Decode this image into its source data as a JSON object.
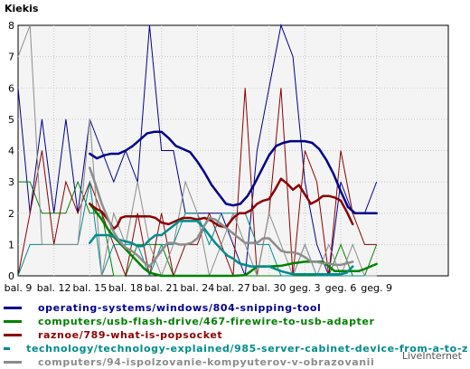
{
  "title": "Kiekis",
  "credit": "LiveInternet",
  "chart_data": {
    "type": "line",
    "title": "Kiekis",
    "xlabel": "",
    "ylabel": "",
    "ylim": [
      0,
      8
    ],
    "yticks": [
      0,
      1,
      2,
      3,
      4,
      5,
      6,
      7,
      8
    ],
    "xlim": [
      0,
      36
    ],
    "xticks": [
      {
        "x": 0,
        "label": "bal. 9"
      },
      {
        "x": 3,
        "label": "bal. 12"
      },
      {
        "x": 6,
        "label": "bal. 15"
      },
      {
        "x": 9,
        "label": "bal. 18"
      },
      {
        "x": 12,
        "label": "bal. 21"
      },
      {
        "x": 15,
        "label": "bal. 24"
      },
      {
        "x": 18,
        "label": "bal. 27"
      },
      {
        "x": 21,
        "label": "bal. 30"
      },
      {
        "x": 24,
        "label": "geg. 3"
      },
      {
        "x": 27,
        "label": "geg. 6"
      },
      {
        "x": 30,
        "label": "geg. 9"
      }
    ],
    "grid": true,
    "legend_position": "bottom",
    "series": [
      {
        "name": "operating-systems/windows/804-snipping-tool",
        "color": "#00008b",
        "raw": [
          6,
          2,
          5,
          2,
          5,
          2,
          5,
          4,
          3,
          4,
          3,
          8,
          4,
          4,
          2,
          2,
          2,
          2,
          1,
          0,
          4,
          6,
          8,
          7,
          3,
          1,
          0,
          3,
          2,
          2,
          3
        ],
        "smooth": [
          [
            6,
            3.9
          ],
          [
            6.6,
            3.75
          ],
          [
            7.2,
            3.85
          ],
          [
            7.8,
            3.9
          ],
          [
            8.4,
            3.9
          ],
          [
            9,
            4.0
          ],
          [
            9.6,
            4.15
          ],
          [
            10.2,
            4.35
          ],
          [
            10.8,
            4.55
          ],
          [
            11.4,
            4.6
          ],
          [
            12,
            4.6
          ],
          [
            12.6,
            4.4
          ],
          [
            13.2,
            4.15
          ],
          [
            13.8,
            4.05
          ],
          [
            14.4,
            3.95
          ],
          [
            15,
            3.65
          ],
          [
            15.6,
            3.3
          ],
          [
            16.2,
            2.9
          ],
          [
            16.8,
            2.6
          ],
          [
            17.4,
            2.3
          ],
          [
            18,
            2.25
          ],
          [
            18.6,
            2.3
          ],
          [
            19.2,
            2.55
          ],
          [
            19.8,
            2.95
          ],
          [
            20.4,
            3.4
          ],
          [
            21,
            3.85
          ],
          [
            21.6,
            4.15
          ],
          [
            22.2,
            4.25
          ],
          [
            22.8,
            4.3
          ],
          [
            23.4,
            4.3
          ],
          [
            24,
            4.3
          ],
          [
            24.6,
            4.25
          ],
          [
            25.2,
            4.05
          ],
          [
            25.8,
            3.7
          ],
          [
            26.4,
            3.25
          ],
          [
            27,
            2.7
          ],
          [
            27.6,
            2.2
          ],
          [
            28.2,
            2.0
          ],
          [
            28.8,
            2.0
          ],
          [
            29.4,
            2.0
          ],
          [
            30,
            2.0
          ]
        ]
      },
      {
        "name": "computers/usb-flash-drive/467-firewire-to-usb-adapter",
        "color": "#008000",
        "raw": [
          3,
          3,
          2,
          2,
          2,
          3,
          2,
          2,
          0,
          0,
          1,
          1,
          1,
          0,
          0,
          0,
          0,
          0,
          0,
          0,
          0,
          0,
          0,
          0,
          0,
          0,
          0,
          1,
          0,
          0,
          1
        ],
        "smooth": [
          [
            6,
            2.3
          ],
          [
            6.5,
            2.05
          ],
          [
            7,
            1.8
          ],
          [
            7.5,
            1.5
          ],
          [
            8,
            1.25
          ],
          [
            8.5,
            1.05
          ],
          [
            9,
            0.85
          ],
          [
            9.5,
            0.65
          ],
          [
            10,
            0.45
          ],
          [
            10.5,
            0.25
          ],
          [
            11,
            0.1
          ],
          [
            11.5,
            0.05
          ],
          [
            12,
            0.0
          ],
          [
            18,
            0.0
          ],
          [
            19,
            0.02
          ],
          [
            19.5,
            0.15
          ],
          [
            20,
            0.3
          ],
          [
            21,
            0.3
          ],
          [
            22,
            0.32
          ],
          [
            23,
            0.4
          ],
          [
            24,
            0.45
          ],
          [
            25,
            0.45
          ],
          [
            25.5,
            0.45
          ],
          [
            26,
            0.3
          ],
          [
            26.5,
            0.15
          ],
          [
            28,
            0.15
          ],
          [
            28.5,
            0.15
          ],
          [
            29,
            0.22
          ],
          [
            29.5,
            0.3
          ],
          [
            30,
            0.38
          ]
        ]
      },
      {
        "name": "raznoe/789-what-is-popsocket",
        "color": "#8b0000",
        "raw": [
          0,
          2,
          4,
          1,
          3,
          2,
          3,
          2,
          1,
          0,
          2,
          0,
          2,
          0,
          1,
          1,
          2,
          1,
          0,
          6,
          0,
          2,
          6,
          0,
          4,
          3,
          0,
          4,
          2,
          1,
          1
        ],
        "smooth": [
          [
            6,
            2.3
          ],
          [
            6.5,
            2.15
          ],
          [
            7,
            2.05
          ],
          [
            7.5,
            1.8
          ],
          [
            8,
            1.5
          ],
          [
            8.3,
            1.6
          ],
          [
            8.6,
            1.85
          ],
          [
            9,
            1.9
          ],
          [
            10,
            1.9
          ],
          [
            11,
            1.9
          ],
          [
            11.5,
            1.85
          ],
          [
            12,
            1.7
          ],
          [
            12.6,
            1.65
          ],
          [
            13.2,
            1.75
          ],
          [
            13.8,
            1.85
          ],
          [
            14.4,
            1.85
          ],
          [
            15,
            1.8
          ],
          [
            15.6,
            1.85
          ],
          [
            16.2,
            1.75
          ],
          [
            16.8,
            1.6
          ],
          [
            17.4,
            1.55
          ],
          [
            18,
            1.85
          ],
          [
            18.5,
            2.0
          ],
          [
            19,
            2.0
          ],
          [
            19.5,
            2.1
          ],
          [
            20,
            2.3
          ],
          [
            20.5,
            2.4
          ],
          [
            21,
            2.45
          ],
          [
            21.5,
            2.75
          ],
          [
            22,
            3.1
          ],
          [
            22.5,
            2.95
          ],
          [
            23,
            2.75
          ],
          [
            23.5,
            2.9
          ],
          [
            24,
            2.6
          ],
          [
            24.5,
            2.3
          ],
          [
            25,
            2.4
          ],
          [
            25.5,
            2.55
          ],
          [
            26,
            2.55
          ],
          [
            26.5,
            2.5
          ],
          [
            27,
            2.4
          ],
          [
            27.5,
            2.05
          ],
          [
            28,
            1.65
          ]
        ]
      },
      {
        "name": "technology/technology-explained/985-server-cabinet-device-from-a-to-z",
        "color": "#008b8b",
        "raw": [
          0,
          1,
          1,
          1,
          1,
          1,
          3,
          0,
          1,
          1,
          1,
          0,
          1,
          1,
          2,
          2,
          1,
          2,
          2,
          2,
          1,
          1,
          0,
          0,
          1,
          0,
          0,
          0,
          0,
          0,
          0
        ],
        "smooth": [
          [
            6,
            1.05
          ],
          [
            6.5,
            1.3
          ],
          [
            7,
            1.3
          ],
          [
            7.5,
            1.3
          ],
          [
            8,
            1.25
          ],
          [
            8.5,
            1.15
          ],
          [
            9,
            1.1
          ],
          [
            9.5,
            1.05
          ],
          [
            10,
            0.95
          ],
          [
            10.5,
            0.95
          ],
          [
            11,
            1.15
          ],
          [
            11.5,
            1.3
          ],
          [
            12,
            1.3
          ],
          [
            12.5,
            1.45
          ],
          [
            13,
            1.6
          ],
          [
            13.5,
            1.75
          ],
          [
            14,
            1.75
          ],
          [
            14.5,
            1.75
          ],
          [
            15,
            1.75
          ],
          [
            15.5,
            1.55
          ],
          [
            16,
            1.3
          ],
          [
            16.5,
            1.05
          ],
          [
            17,
            0.85
          ],
          [
            17.5,
            0.65
          ],
          [
            18,
            0.55
          ],
          [
            18.5,
            0.4
          ],
          [
            19,
            0.35
          ],
          [
            19.5,
            0.3
          ],
          [
            20,
            0.3
          ],
          [
            20.5,
            0.3
          ],
          [
            21,
            0.3
          ],
          [
            22,
            0.15
          ],
          [
            23,
            0.05
          ],
          [
            24,
            0.05
          ],
          [
            25,
            0.05
          ],
          [
            26,
            0.05
          ],
          [
            27,
            0.05
          ],
          [
            27.5,
            0.1
          ],
          [
            28,
            0.3
          ]
        ]
      },
      {
        "name": "computers/94-ispolzovanie-kompyuterov-v-obrazovanii",
        "color": "#8c8c8c",
        "raw": [
          7,
          8,
          1,
          1,
          1,
          1,
          5,
          0,
          2,
          1,
          3,
          1,
          0,
          1,
          3,
          2,
          0,
          1,
          2,
          1,
          0,
          2,
          1,
          0,
          1,
          0,
          1,
          0,
          1,
          0,
          0
        ],
        "smooth": [
          [
            6,
            3.45
          ],
          [
            6.5,
            2.9
          ],
          [
            7,
            2.3
          ],
          [
            7.5,
            1.85
          ],
          [
            8,
            1.4
          ],
          [
            8.5,
            1.1
          ],
          [
            9,
            0.9
          ],
          [
            9.5,
            0.8
          ],
          [
            10,
            0.65
          ],
          [
            10.5,
            0.45
          ],
          [
            11,
            0.3
          ],
          [
            11.5,
            0.55
          ],
          [
            12,
            0.8
          ],
          [
            12.5,
            1.05
          ],
          [
            13,
            1.05
          ],
          [
            13.5,
            1.0
          ],
          [
            14,
            1.0
          ],
          [
            14.5,
            1.05
          ],
          [
            15,
            1.2
          ],
          [
            15.5,
            1.55
          ],
          [
            16,
            1.85
          ],
          [
            16.5,
            1.8
          ],
          [
            17,
            1.65
          ],
          [
            17.5,
            1.5
          ],
          [
            18,
            1.35
          ],
          [
            18.5,
            1.2
          ],
          [
            19,
            1.05
          ],
          [
            19.5,
            1.05
          ],
          [
            20,
            1.05
          ],
          [
            20.5,
            1.2
          ],
          [
            21,
            1.2
          ],
          [
            21.5,
            1.0
          ],
          [
            22,
            0.8
          ],
          [
            22.5,
            0.75
          ],
          [
            23,
            0.75
          ],
          [
            23.5,
            0.7
          ],
          [
            24,
            0.6
          ],
          [
            24.5,
            0.45
          ],
          [
            25,
            0.45
          ],
          [
            25.5,
            0.4
          ],
          [
            26,
            0.4
          ],
          [
            26.5,
            0.35
          ],
          [
            27,
            0.35
          ],
          [
            27.5,
            0.4
          ],
          [
            28,
            0.45
          ]
        ]
      }
    ]
  }
}
